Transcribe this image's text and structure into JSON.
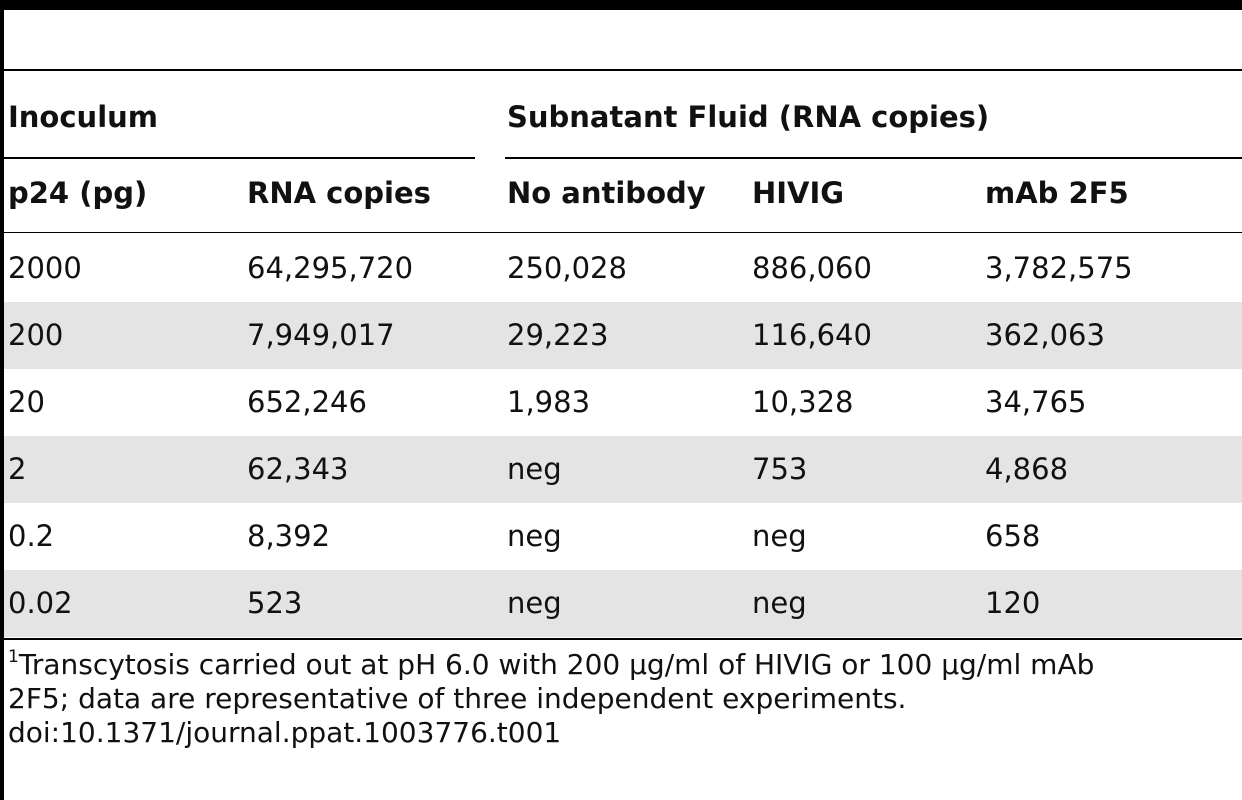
{
  "table": {
    "group_headers": {
      "inoculum": "Inoculum",
      "subnatant": "Subnatant Fluid (RNA copies)"
    },
    "columns": [
      "p24 (pg)",
      "RNA copies",
      "No antibody",
      "HIVIG",
      "mAb 2F5"
    ],
    "rows": [
      [
        "2000",
        "64,295,720",
        "250,028",
        "886,060",
        "3,782,575"
      ],
      [
        "200",
        "7,949,017",
        "29,223",
        "116,640",
        "362,063"
      ],
      [
        "20",
        "652,246",
        "1,983",
        "10,328",
        "34,765"
      ],
      [
        "2",
        "62,343",
        "neg",
        "753",
        "4,868"
      ],
      [
        "0.2",
        "8,392",
        "neg",
        "neg",
        "658"
      ],
      [
        "0.02",
        "523",
        "neg",
        "neg",
        "120"
      ]
    ]
  },
  "footnote": {
    "marker": "1",
    "line1": "Transcytosis carried out at pH 6.0 with 200 µg/ml of HIVIG or 100 µg/ml mAb",
    "line2": "2F5; data are representative of three independent experiments.",
    "doi": "doi:10.1371/journal.ppat.1003776.t001"
  }
}
